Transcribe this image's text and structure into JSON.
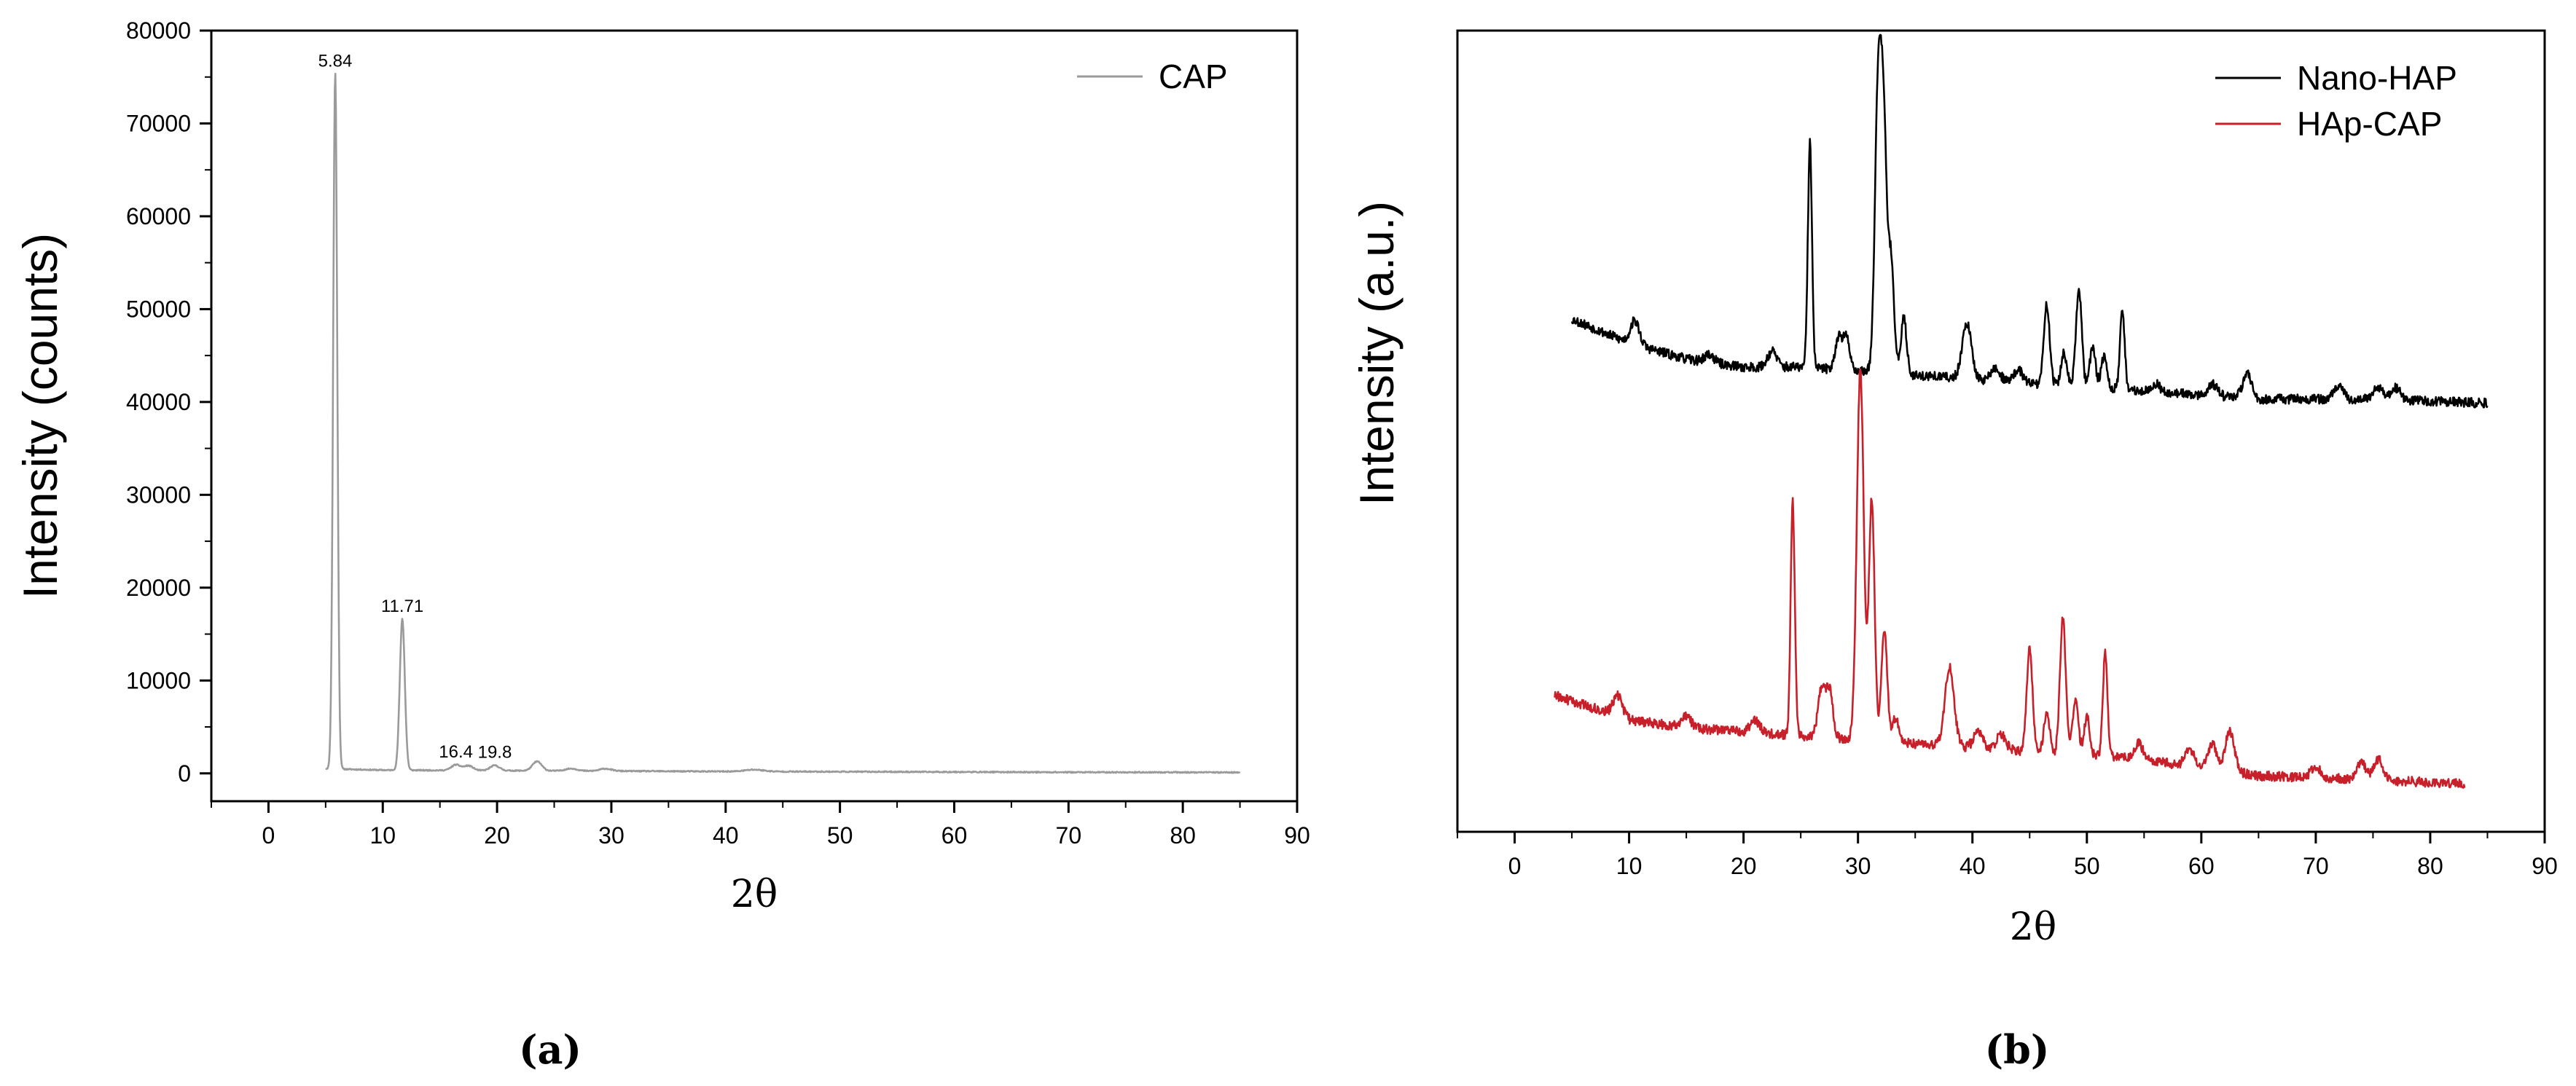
{
  "chart_data": [
    {
      "type": "line",
      "panel_label": "(a)",
      "xlabel": "2θ",
      "ylabel": "Intensity (counts)",
      "xlim": [
        -5,
        90
      ],
      "ylim": [
        -3000,
        80000
      ],
      "xticks": [
        0,
        10,
        20,
        30,
        40,
        50,
        60,
        70,
        80,
        90
      ],
      "yticks": [
        0,
        10000,
        20000,
        30000,
        40000,
        50000,
        60000,
        70000,
        80000
      ],
      "legend_position": "top-right",
      "series": [
        {
          "name": "CAP",
          "color": "#9a9a9a",
          "baseline": [
            [
              5.0,
              500
            ],
            [
              10,
              350
            ],
            [
              20,
              300
            ],
            [
              30,
              250
            ],
            [
              40,
              200
            ],
            [
              50,
              180
            ],
            [
              60,
              150
            ],
            [
              70,
              120
            ],
            [
              85,
              100
            ]
          ],
          "peaks": [
            {
              "x": 5.84,
              "y": 75000,
              "w": 0.18
            },
            {
              "x": 11.71,
              "y": 16300,
              "w": 0.22
            },
            {
              "x": 16.4,
              "y": 600,
              "w": 0.4
            },
            {
              "x": 17.5,
              "y": 500,
              "w": 0.4
            },
            {
              "x": 19.8,
              "y": 550,
              "w": 0.4
            },
            {
              "x": 23.5,
              "y": 1000,
              "w": 0.4
            },
            {
              "x": 26.5,
              "y": 250,
              "w": 0.5
            },
            {
              "x": 29.5,
              "y": 250,
              "w": 0.5
            },
            {
              "x": 42.5,
              "y": 200,
              "w": 0.8
            }
          ]
        }
      ],
      "annotations": [
        {
          "x": 5.84,
          "y": 75000,
          "text": "5.84"
        },
        {
          "x": 11.71,
          "y": 16300,
          "text": "11.71"
        },
        {
          "x": 16.4,
          "y": 600,
          "text": "16.4"
        },
        {
          "x": 19.8,
          "y": 550,
          "text": "19.8"
        }
      ]
    },
    {
      "type": "line",
      "panel_label": "(b)",
      "xlabel": "2θ",
      "ylabel": "Intensity (a.u.)",
      "xlim": [
        -5,
        90
      ],
      "ylim": [
        0,
        100
      ],
      "xticks": [
        0,
        10,
        20,
        30,
        40,
        50,
        60,
        70,
        80,
        90
      ],
      "yticks": [],
      "legend_position": "top-right",
      "series": [
        {
          "name": "Nano-HAP",
          "color": "#000000",
          "baseline": [
            [
              5,
              64
            ],
            [
              10,
              61
            ],
            [
              15,
              59
            ],
            [
              20,
              58
            ],
            [
              25,
              58
            ],
            [
              35,
              57
            ],
            [
              45,
              56
            ],
            [
              55,
              55
            ],
            [
              65,
              54
            ],
            [
              75,
              54
            ],
            [
              85,
              53.5
            ]
          ],
          "peaks": [
            {
              "x": 10.5,
              "y": 3,
              "w": 0.4
            },
            {
              "x": 17.0,
              "y": 1,
              "w": 0.4
            },
            {
              "x": 22.5,
              "y": 2,
              "w": 0.4
            },
            {
              "x": 25.8,
              "y": 28,
              "w": 0.18
            },
            {
              "x": 28.3,
              "y": 4,
              "w": 0.3
            },
            {
              "x": 29.0,
              "y": 4,
              "w": 0.3
            },
            {
              "x": 31.8,
              "y": 38,
              "w": 0.3
            },
            {
              "x": 32.3,
              "y": 24,
              "w": 0.25
            },
            {
              "x": 32.9,
              "y": 14,
              "w": 0.25
            },
            {
              "x": 34.0,
              "y": 7,
              "w": 0.25
            },
            {
              "x": 39.5,
              "y": 7,
              "w": 0.4
            },
            {
              "x": 42.0,
              "y": 1.5,
              "w": 0.4
            },
            {
              "x": 44.0,
              "y": 1.5,
              "w": 0.4
            },
            {
              "x": 46.5,
              "y": 10,
              "w": 0.25
            },
            {
              "x": 48.0,
              "y": 4,
              "w": 0.25
            },
            {
              "x": 49.3,
              "y": 12,
              "w": 0.25
            },
            {
              "x": 50.5,
              "y": 5,
              "w": 0.25
            },
            {
              "x": 51.5,
              "y": 4,
              "w": 0.25
            },
            {
              "x": 53.1,
              "y": 10,
              "w": 0.2
            },
            {
              "x": 56.0,
              "y": 1,
              "w": 0.4
            },
            {
              "x": 61.0,
              "y": 1.5,
              "w": 0.4
            },
            {
              "x": 64.0,
              "y": 3,
              "w": 0.4
            },
            {
              "x": 72.0,
              "y": 1.5,
              "w": 0.4
            },
            {
              "x": 75.5,
              "y": 1.5,
              "w": 0.4
            },
            {
              "x": 77.0,
              "y": 1.5,
              "w": 0.4
            }
          ]
        },
        {
          "name": "HAp-CAP",
          "color": "#c8202a",
          "baseline": [
            [
              3.5,
              17
            ],
            [
              10,
              14
            ],
            [
              15,
              13
            ],
            [
              20,
              12.5
            ],
            [
              25,
              12
            ],
            [
              35,
              11
            ],
            [
              45,
              10
            ],
            [
              55,
              9
            ],
            [
              65,
              7
            ],
            [
              75,
              6.5
            ],
            [
              83,
              6
            ]
          ],
          "peaks": [
            {
              "x": 9.0,
              "y": 2.5,
              "w": 0.4
            },
            {
              "x": 15.0,
              "y": 1.5,
              "w": 0.4
            },
            {
              "x": 21.0,
              "y": 1.5,
              "w": 0.4
            },
            {
              "x": 24.3,
              "y": 29,
              "w": 0.18
            },
            {
              "x": 26.8,
              "y": 6,
              "w": 0.3
            },
            {
              "x": 27.5,
              "y": 6,
              "w": 0.3
            },
            {
              "x": 30.2,
              "y": 46,
              "w": 0.3
            },
            {
              "x": 31.2,
              "y": 30,
              "w": 0.25
            },
            {
              "x": 32.3,
              "y": 14,
              "w": 0.25
            },
            {
              "x": 33.3,
              "y": 3,
              "w": 0.3
            },
            {
              "x": 38.0,
              "y": 10,
              "w": 0.4
            },
            {
              "x": 40.5,
              "y": 2,
              "w": 0.4
            },
            {
              "x": 42.5,
              "y": 2,
              "w": 0.4
            },
            {
              "x": 45.0,
              "y": 13,
              "w": 0.25
            },
            {
              "x": 46.5,
              "y": 5,
              "w": 0.25
            },
            {
              "x": 47.9,
              "y": 17,
              "w": 0.25
            },
            {
              "x": 49.0,
              "y": 7,
              "w": 0.25
            },
            {
              "x": 50.0,
              "y": 5,
              "w": 0.25
            },
            {
              "x": 51.6,
              "y": 13,
              "w": 0.2
            },
            {
              "x": 54.5,
              "y": 2,
              "w": 0.4
            },
            {
              "x": 59.0,
              "y": 2,
              "w": 0.4
            },
            {
              "x": 61.0,
              "y": 3,
              "w": 0.4
            },
            {
              "x": 62.5,
              "y": 5,
              "w": 0.4
            },
            {
              "x": 70.0,
              "y": 1.5,
              "w": 0.4
            },
            {
              "x": 74.0,
              "y": 2,
              "w": 0.4
            },
            {
              "x": 75.5,
              "y": 2.5,
              "w": 0.4
            }
          ]
        }
      ]
    }
  ]
}
